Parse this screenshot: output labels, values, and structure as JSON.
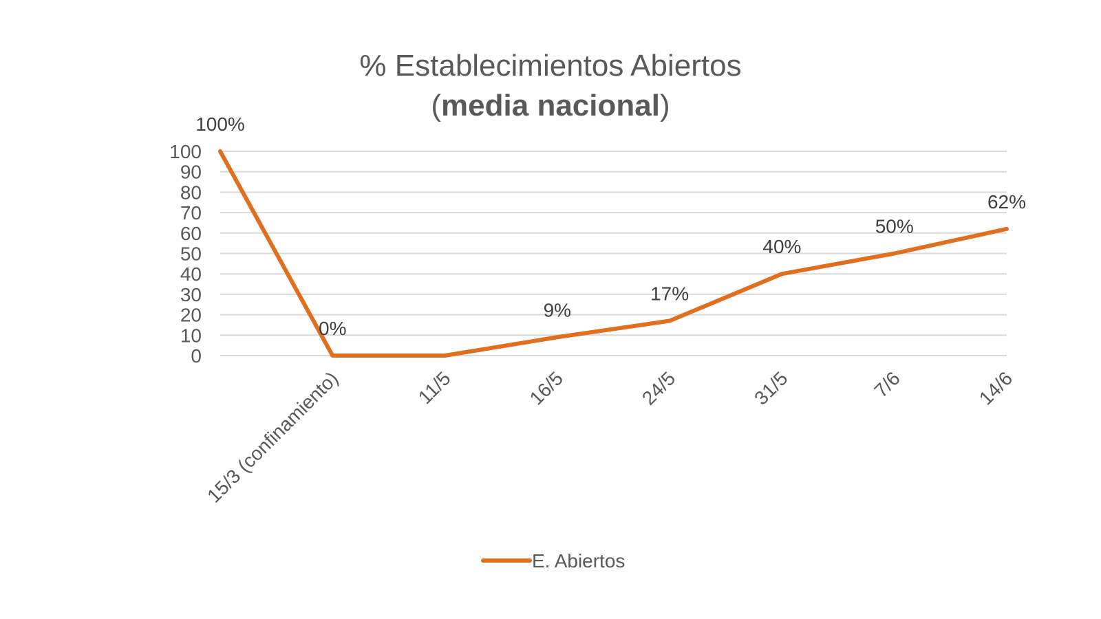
{
  "chart_data": {
    "type": "line",
    "title_line1": "% Establecimientos  Abiertos",
    "title_line2_open": "(",
    "title_line2_bold": "media nacional",
    "title_line2_close": ")",
    "categories": [
      "15/3 (confinamiento)",
      "11/5",
      "16/5",
      "24/5",
      "31/5",
      "7/6",
      "14/6"
    ],
    "x_positions": [
      0,
      1,
      2,
      3,
      4,
      5,
      6,
      7
    ],
    "x_tick_labels": [
      {
        "label": "15/3 (confinamiento)",
        "index": 1
      },
      {
        "label": "11/5",
        "index": 2
      },
      {
        "label": "16/5",
        "index": 3
      },
      {
        "label": "24/5",
        "index": 4
      },
      {
        "label": "31/5",
        "index": 5
      },
      {
        "label": "7/6",
        "index": 6
      },
      {
        "label": "14/6",
        "index": 7
      }
    ],
    "series": [
      {
        "name": "E. Abiertos",
        "color": "#e07020",
        "points": [
          {
            "x": 0,
            "y": 100,
            "label": "100%"
          },
          {
            "x": 1,
            "y": 0,
            "label": "0%"
          },
          {
            "x": 2,
            "y": 0,
            "label": ""
          },
          {
            "x": 3,
            "y": 9,
            "label": "9%"
          },
          {
            "x": 4,
            "y": 17,
            "label": "17%"
          },
          {
            "x": 5,
            "y": 40,
            "label": "40%"
          },
          {
            "x": 6,
            "y": 50,
            "label": "50%"
          },
          {
            "x": 7,
            "y": 62,
            "label": "62%"
          }
        ]
      }
    ],
    "y_ticks": [
      "0",
      "10",
      "20",
      "30",
      "40",
      "50",
      "60",
      "70",
      "80",
      "90",
      "100"
    ],
    "ylim": [
      0,
      100
    ],
    "grid": true,
    "legend_position": "bottom",
    "legend_label": "E. Abiertos"
  }
}
